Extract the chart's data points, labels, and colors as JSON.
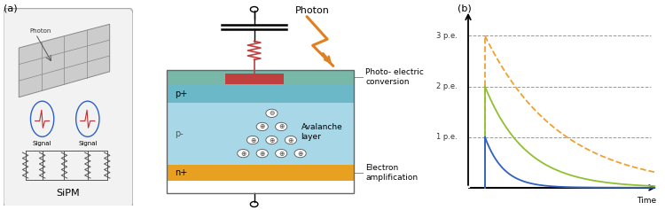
{
  "fig_width": 7.5,
  "fig_height": 2.37,
  "dpi": 100,
  "bg_color": "#ffffff",
  "label_a": "(a)",
  "label_b": "(b)",
  "sipm_label": "SiPM",
  "photon_label": "Photon",
  "photo_electric_label": "Photo- electric\nconversion",
  "electron_amp_label": "Electron\namplification",
  "avalanche_label": "Avalanche\nlayer",
  "p_plus_label": "p+",
  "p_minus_label": "p-",
  "n_plus_label": "n+",
  "time_label": "Time",
  "pe1_label": "1 p.e.",
  "pe2_label": "2 p.e.",
  "pe3_label": "3 p.e.",
  "signal_label": "Signal",
  "colors": {
    "p_plus_layer": "#6bb8c8",
    "p_minus_layer": "#a8d8e8",
    "n_plus_layer": "#e8a020",
    "top_layer": "#78b8a8",
    "outline": "#555555",
    "blue_curve": "#3060c0",
    "green_curve": "#90c030",
    "orange_curve": "#f0a030",
    "sipm_box_bg": "#e8e8e8",
    "photon_arrow": "#e08020",
    "resistor_color": "#c04040"
  },
  "decay_tau_blue": 0.1,
  "decay_tau_green": 0.22,
  "decay_tau_orange": 0.4
}
